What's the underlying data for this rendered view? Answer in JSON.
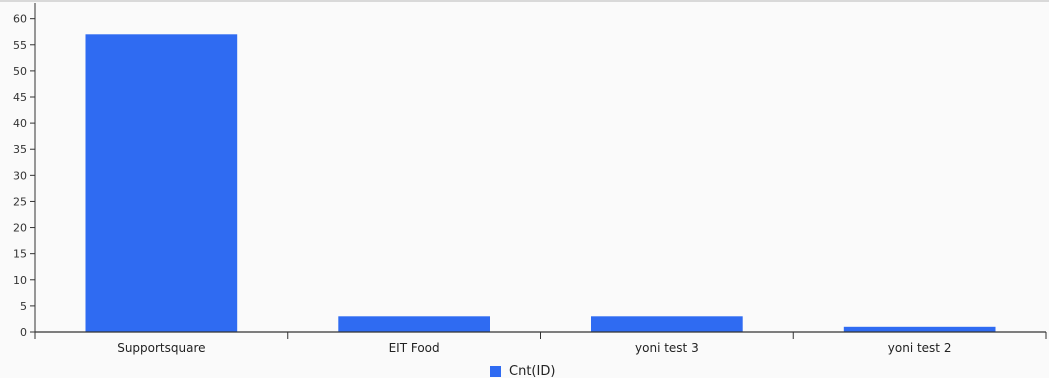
{
  "colors": {
    "bar": "#2f6bf2",
    "axis": "#333333"
  },
  "legend": {
    "label": "Cnt(ID)"
  },
  "chart_data": {
    "type": "bar",
    "categories": [
      "Supportsquare",
      "EIT Food",
      "yoni test 3",
      "yoni test 2"
    ],
    "series": [
      {
        "name": "Cnt(ID)",
        "values": [
          57,
          3,
          3,
          1
        ]
      }
    ],
    "ylim": [
      0,
      63
    ],
    "yticks": [
      0,
      5,
      10,
      15,
      20,
      25,
      30,
      35,
      40,
      45,
      50,
      55,
      60
    ],
    "grid": false,
    "legend_position": "bottom-center"
  }
}
